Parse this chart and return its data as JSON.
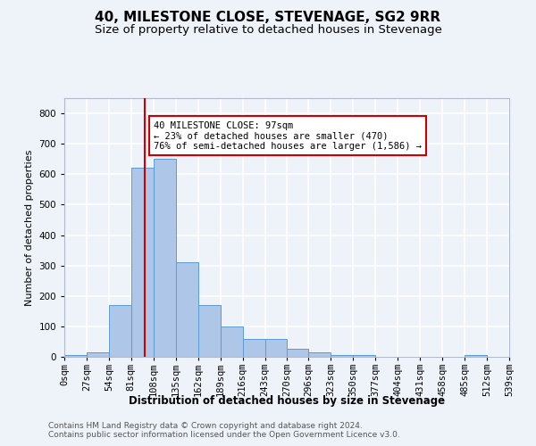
{
  "title": "40, MILESTONE CLOSE, STEVENAGE, SG2 9RR",
  "subtitle": "Size of property relative to detached houses in Stevenage",
  "xlabel": "Distribution of detached houses by size in Stevenage",
  "ylabel": "Number of detached properties",
  "footer1": "Contains HM Land Registry data © Crown copyright and database right 2024.",
  "footer2": "Contains public sector information licensed under the Open Government Licence v3.0.",
  "bin_edges": [
    0,
    27,
    54,
    81,
    108,
    135,
    162,
    189,
    216,
    243,
    270,
    296,
    323,
    350,
    377,
    404,
    431,
    458,
    485,
    512,
    539
  ],
  "bar_heights": [
    5,
    15,
    170,
    620,
    650,
    310,
    170,
    100,
    60,
    60,
    25,
    15,
    5,
    5,
    0,
    0,
    0,
    0,
    5,
    0
  ],
  "bar_color": "#aec6e8",
  "bar_edge_color": "#5b9bd5",
  "property_size": 97,
  "property_line_color": "#cc0000",
  "annotation_line1": "40 MILESTONE CLOSE: 97sqm",
  "annotation_line2": "← 23% of detached houses are smaller (470)",
  "annotation_line3": "76% of semi-detached houses are larger (1,586) →",
  "annotation_box_color": "#cc0000",
  "ylim": [
    0,
    850
  ],
  "yticks": [
    0,
    100,
    200,
    300,
    400,
    500,
    600,
    700,
    800
  ],
  "background_color": "#eef2f9",
  "grid_color": "#ffffff",
  "title_fontsize": 11,
  "subtitle_fontsize": 9.5,
  "axis_label_fontsize": 8.5,
  "tick_fontsize": 7.5,
  "ylabel_fontsize": 8
}
